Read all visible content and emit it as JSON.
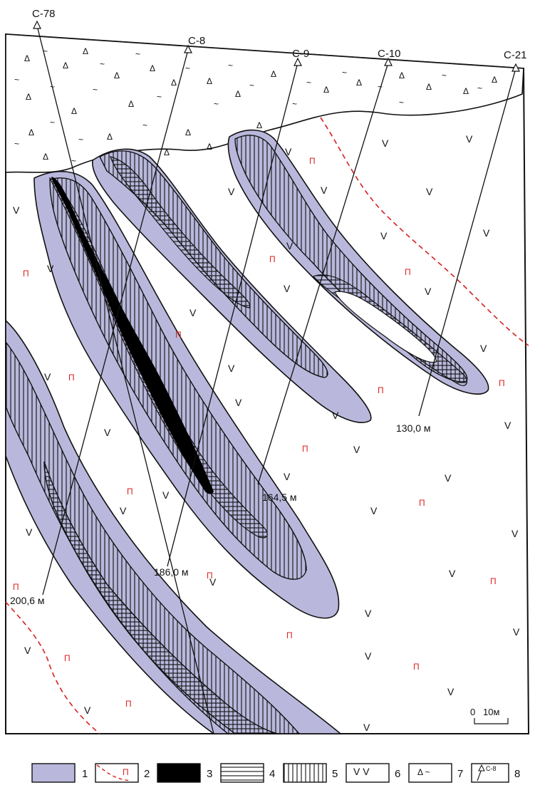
{
  "colors": {
    "zone_fill": "#b9b8dc",
    "ore_solid": "#000000",
    "contact_line": "#d62020",
    "outline": "#111111"
  },
  "drillholes": [
    {
      "name": "С-78"
    },
    {
      "name": "С-8",
      "depth": "186,0 м"
    },
    {
      "name": "С-9",
      "depth": "164,5 м"
    },
    {
      "name": "С-10",
      "depth": "200,6 м"
    },
    {
      "name": "С-21",
      "depth": "130,0 м"
    }
  ],
  "extra_depth": "200,6 м",
  "symbols": {
    "volcanic": "П",
    "basalt": "V",
    "breccia_tri": "Δ",
    "breccia_dash": "~"
  },
  "scale": {
    "zero": "0",
    "value": "10м"
  },
  "legend": [
    {
      "num": "1"
    },
    {
      "num": "2",
      "symbol": "П"
    },
    {
      "num": "3"
    },
    {
      "num": "4"
    },
    {
      "num": "5"
    },
    {
      "num": "6",
      "symbol": "V V"
    },
    {
      "num": "7",
      "symbol": "Δ ~"
    },
    {
      "num": "8",
      "symbol": "С-8"
    }
  ]
}
